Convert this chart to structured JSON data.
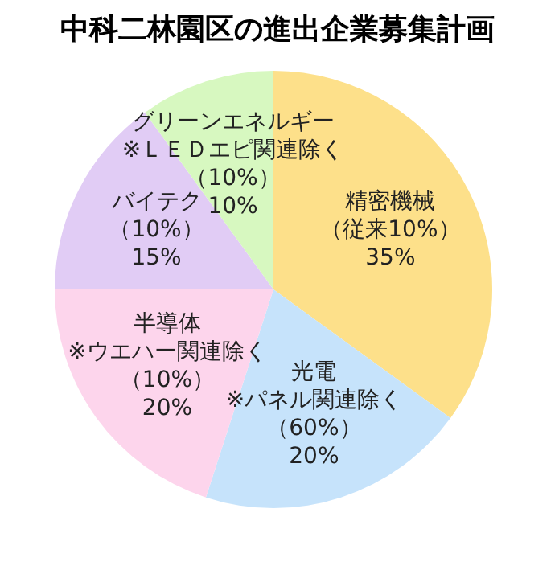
{
  "chart_data": {
    "type": "pie",
    "title": "中科二林園区の進出企業募集計画",
    "categories": [
      "精密機械（従来10%）",
      "光電※パネル関連除く（60%）",
      "半導体※ウエハー関連除く（10%）",
      "バイテク（10%）",
      "グリーンエネルギー※ＬＥＤエピ関連除く（10%）"
    ],
    "values": [
      35,
      20,
      20,
      15,
      10
    ],
    "value_labels": [
      "35%",
      "20%",
      "20%",
      "15%",
      "10%"
    ],
    "colors": [
      "#fde08a",
      "#c6e3fb",
      "#fdd5ec",
      "#e1ccf5",
      "#d7f8c0"
    ]
  }
}
